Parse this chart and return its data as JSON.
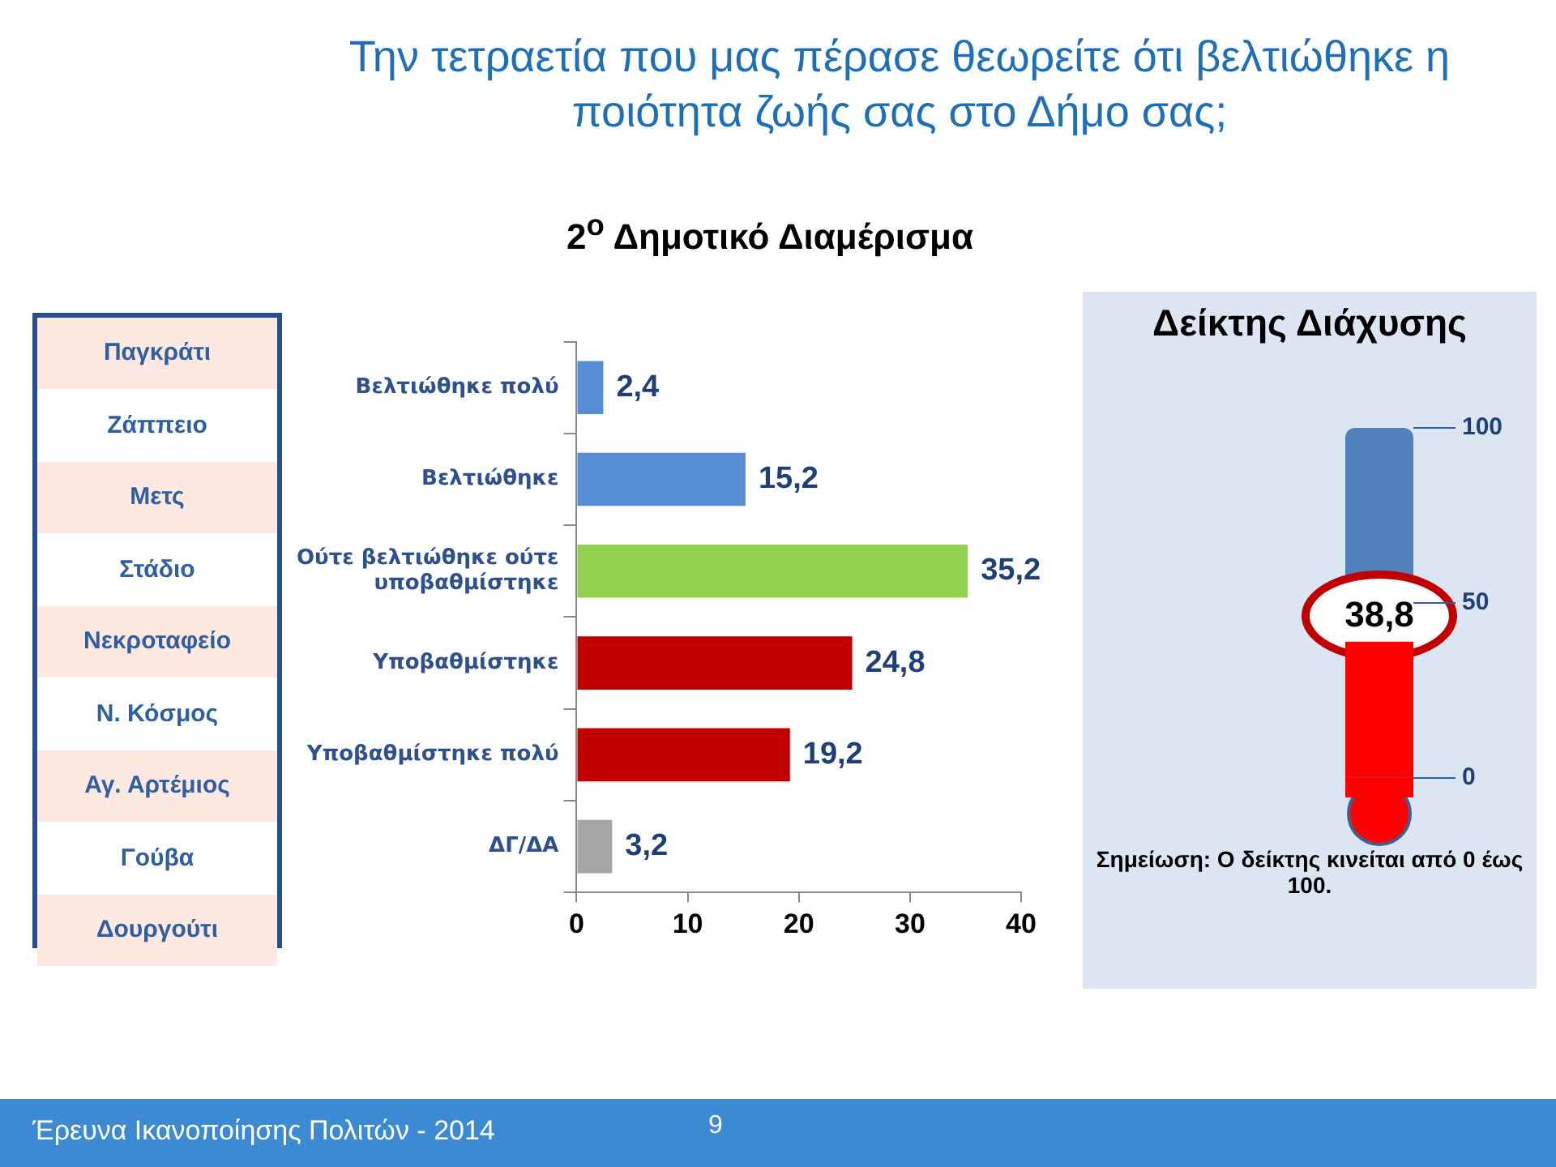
{
  "chart_data": [
    {
      "type": "other",
      "annotations": [
        "Παγκράτι",
        "Ζάππειο",
        "Μετς",
        "Στάδιο",
        "Νεκροταφείο",
        "Ν. Κόσμος",
        "Αγ. Αρτέμιος",
        "Γούβα",
        "Δουργούτι"
      ]
    },
    {
      "type": "bar",
      "orientation": "horizontal",
      "title": "Την τετραετία που μας πέρασε θεωρείτε ότι βελτιώθηκε η ποιότητα ζωής σας στο Δήμο σας;",
      "subtitle": "2$^{ο}$ Δημοτικό Διαμέρισμα",
      "categories": [
        "Βελτιώθηκε πολύ",
        "Βελτιώθηκε",
        "Ούτε βελτιώθηκε ούτε υποβαθμίστηκε",
        "Υποβαθμίστηκε",
        "Υποβαθμίστηκε πολύ",
        "ΔΓ/ΔΑ"
      ],
      "values": [
        2.4,
        15.2,
        35.2,
        24.8,
        19.2,
        3.2
      ],
      "colors": [
        "#558ed5",
        "#558ed5",
        "#92d050",
        "#c00000",
        "#c00000",
        "#a6a6a6"
      ],
      "value_labels": [
        "2,4",
        "15,2",
        "35,2",
        "24,8",
        "19,2",
        "3,2"
      ],
      "xlim": [
        0,
        40
      ],
      "xticks": [
        0,
        10,
        20,
        30,
        40
      ],
      "annotations": [
        "Έρευνα Ικανοποίησης Πολιτών - 2014",
        "9"
      ]
    },
    {
      "type": "bar",
      "title": "Δείκτης Διάχυσης",
      "categories": [
        null
      ],
      "values": [
        38.8
      ],
      "colors": [
        "#ff0000"
      ],
      "value_labels": [
        "38,8"
      ],
      "ylim": [
        0,
        100
      ],
      "yticks": [
        0,
        50,
        100
      ],
      "annotations": [
        "Σημείωση: Ο δείκτης κινείται από 0 έως 100."
      ]
    }
  ]
}
